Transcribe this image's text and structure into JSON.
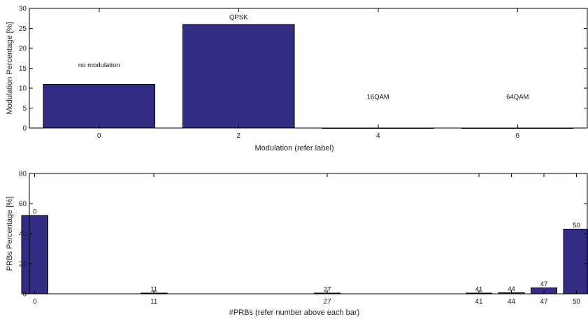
{
  "colors": {
    "bar": "#332c85"
  },
  "chart_data": [
    {
      "type": "bar",
      "xlabel": "Modulation (refer label)",
      "ylabel": "Modulation Percentage [%]",
      "xlim": [
        -1,
        7
      ],
      "ylim": [
        0,
        30
      ],
      "x_ticks": [
        0,
        2,
        4,
        6
      ],
      "y_ticks": [
        0,
        5,
        10,
        15,
        20,
        25,
        30
      ],
      "bar_width": 1.6,
      "x": [
        0,
        2,
        4,
        6
      ],
      "values": [
        11,
        26,
        0,
        0
      ],
      "annotations": [
        {
          "x": 0,
          "y": 15.3,
          "text": "no modulation"
        },
        {
          "x": 2,
          "y": 27.3,
          "text": "QPSK"
        },
        {
          "x": 4,
          "y": 7.3,
          "text": "16QAM"
        },
        {
          "x": 6,
          "y": 7.3,
          "text": "64QAM"
        }
      ]
    },
    {
      "type": "bar",
      "xlabel": "#PRBs (refer number above each bar)",
      "ylabel": "PRBs Percentage [%]",
      "xlim": [
        -0.5,
        51
      ],
      "ylim": [
        0,
        80
      ],
      "x_ticks": [
        0,
        11,
        27,
        41,
        44,
        47,
        50
      ],
      "y_ticks": [
        0,
        20,
        40,
        60,
        80
      ],
      "bar_width": 2.4,
      "x": [
        0,
        11,
        27,
        41,
        44,
        47,
        50
      ],
      "values": [
        52,
        0.4,
        0.4,
        0.4,
        0.8,
        4,
        43
      ],
      "bar_labels": [
        "0",
        "11",
        "27",
        "41",
        "44",
        "47",
        "50"
      ]
    }
  ]
}
